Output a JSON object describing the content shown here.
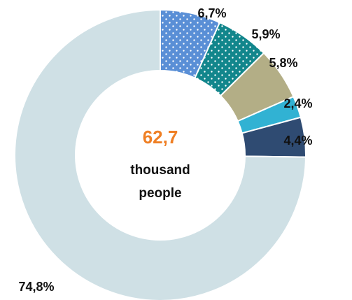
{
  "chart_data": {
    "type": "pie",
    "donut": true,
    "slices": [
      {
        "label": "6,7%",
        "value": 6.7,
        "color": "#5a8fd6",
        "pattern": "dots"
      },
      {
        "label": "5,9%",
        "value": 5.9,
        "color": "#12868c",
        "pattern": "dots"
      },
      {
        "label": "5,8%",
        "value": 5.8,
        "color": "#b3ae86",
        "pattern": "none"
      },
      {
        "label": "2,4%",
        "value": 2.4,
        "color": "#31b2d3",
        "pattern": "none"
      },
      {
        "label": "4,4%",
        "value": 4.4,
        "color": "#2f4b72",
        "pattern": "none"
      },
      {
        "label": "74,8%",
        "value": 74.8,
        "color": "#cfe0e5",
        "pattern": "none"
      }
    ],
    "center": {
      "value": "62,7",
      "line1": "thousand",
      "line2": "people",
      "value_color": "#ef7f24"
    }
  }
}
